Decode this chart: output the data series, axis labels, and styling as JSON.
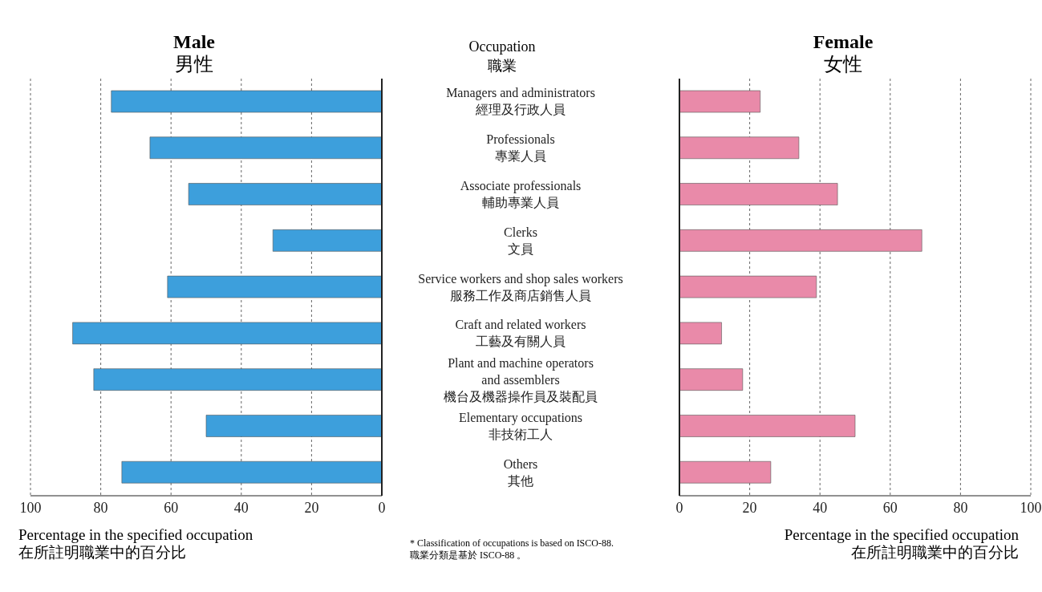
{
  "chart_data": [
    {
      "type": "bar",
      "orientation": "horizontal",
      "title": "Male\n男性",
      "ylabel": "Occupation\n職業",
      "xlabel": "Percentage in the specified occupation\n在所註明職業中的百分比",
      "categories": [
        "Managers and administrators\n經理及行政人員",
        "Professionals\n專業人員",
        "Associate professionals\n輔助專業人員",
        "Clerks\n文員",
        "Service workers and shop sales workers\n服務工作及商店銷售人員",
        "Craft and related workers\n工藝及有關人員",
        "Plant and machine operators\nand assemblers\n機台及機器操作員及裝配員",
        "Elementary occupations\n非技術工人",
        "Others\n其他"
      ],
      "values": [
        77,
        66,
        55,
        31,
        61,
        88,
        82,
        50,
        74
      ],
      "color": "#3d9fdc",
      "xlim": [
        100,
        0
      ],
      "xticks": [
        100,
        80,
        60,
        40,
        20,
        0
      ],
      "grid": "x",
      "annotations": [
        "* Classification of occupations is based on ISCO-88.\n職業分類是基於 ISCO-88 。"
      ]
    },
    {
      "type": "bar",
      "orientation": "horizontal",
      "title": "Female\n女性",
      "xlabel": "Percentage in the specified occupation\n在所註明職業中的百分比",
      "categories": [
        null,
        null,
        null,
        null,
        null,
        null,
        null,
        null,
        null
      ],
      "values": [
        23,
        34,
        45,
        69,
        39,
        12,
        18,
        50,
        26
      ],
      "color": "#e98aa9",
      "xlim": [
        0,
        100
      ],
      "xticks": [
        0,
        20,
        40,
        60,
        80,
        100
      ],
      "grid": "x",
      "tick_labels": "x"
    }
  ]
}
